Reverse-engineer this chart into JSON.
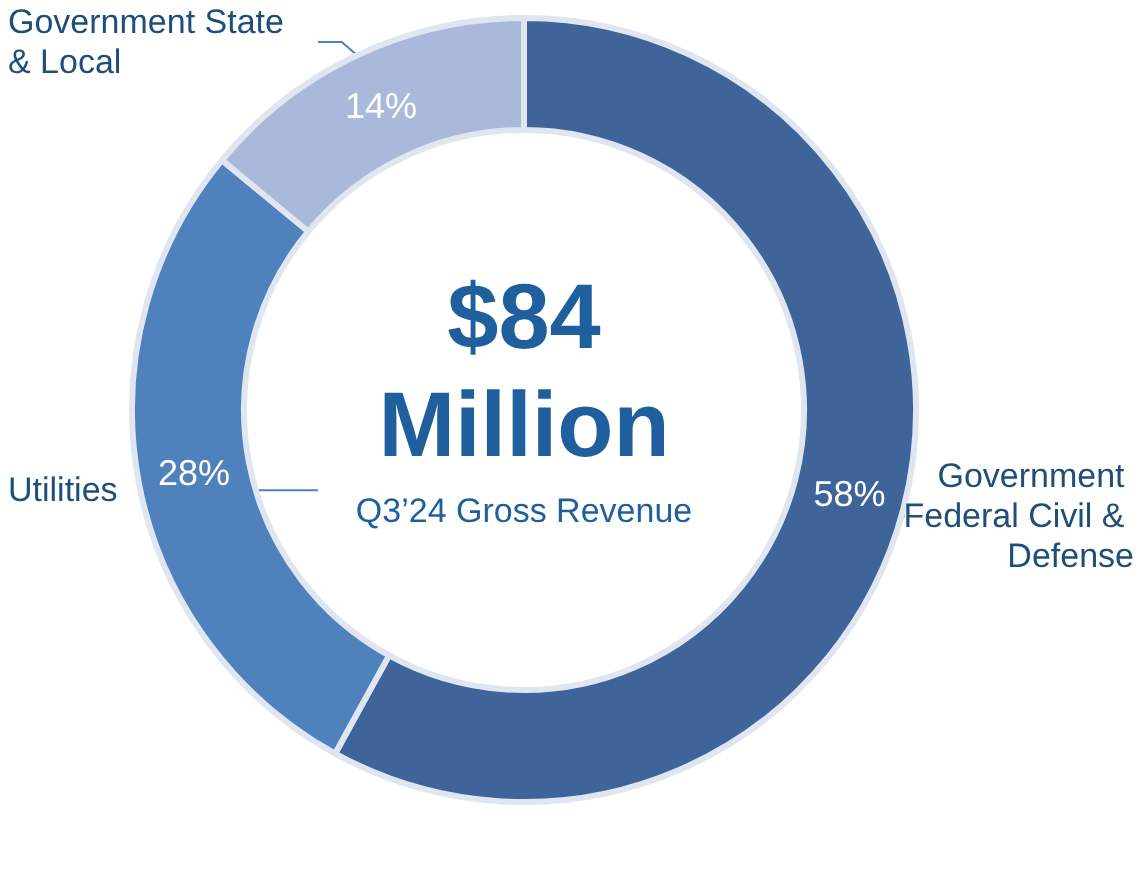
{
  "chart_data": {
    "type": "donut",
    "categories": [
      "Government Federal Civil & Defense",
      "Utilities",
      "Government State & Local"
    ],
    "values": [
      58,
      28,
      14
    ],
    "colors": [
      "#3f6499",
      "#4f81bd",
      "#a9b9d9"
    ],
    "value_labels": [
      "58%",
      "28%",
      "14%"
    ],
    "annotations": [
      "$84",
      "Million",
      "Q3’24 Gross Revenue"
    ],
    "legend": false
  }
}
